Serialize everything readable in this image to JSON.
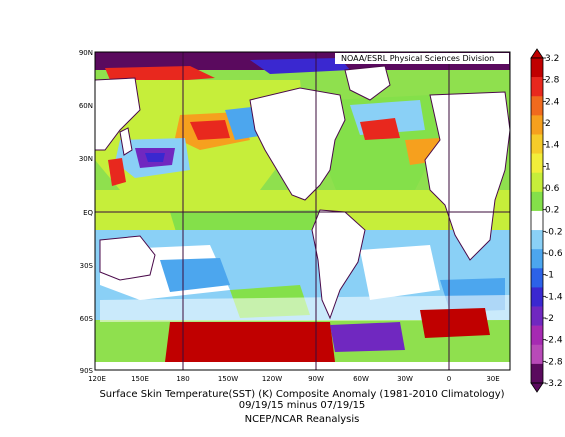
{
  "map": {
    "source_label": "NOAA/ESRL Physical Sciences Division",
    "lat_labels": [
      "90N",
      "60N",
      "30N",
      "EQ",
      "30S",
      "60S",
      "90S"
    ],
    "lon_labels": [
      "120E",
      "150E",
      "180",
      "150W",
      "120W",
      "90W",
      "60W",
      "30W",
      "0",
      "30E"
    ]
  },
  "caption": {
    "line1": "Surface Skin Temperature(SST) (K) Composite Anomaly (1981-2010 Climatology)",
    "line2": "09/19/15 minus 07/19/15",
    "line3": "NCEP/NCAR Reanalysis"
  },
  "colorbar": {
    "labels": [
      "3.2",
      "2.8",
      "2.4",
      "2",
      "1.4",
      "1",
      "0.6",
      "0.2",
      "-0.2",
      "-0.6",
      "-1",
      "-1.4",
      "-2",
      "-2.4",
      "-2.8",
      "-3.2"
    ],
    "colors": [
      "#c00000",
      "#e8281e",
      "#f06a1e",
      "#f6a01e",
      "#f6cc2a",
      "#f2ee3a",
      "#c6ee3a",
      "#84e04a",
      "#ffffff",
      "#8ad0f6",
      "#4ca6ee",
      "#2c62e8",
      "#3a28d0",
      "#7028c0",
      "#a62ab2",
      "#b84ab8",
      "#5a0a5e"
    ]
  }
}
